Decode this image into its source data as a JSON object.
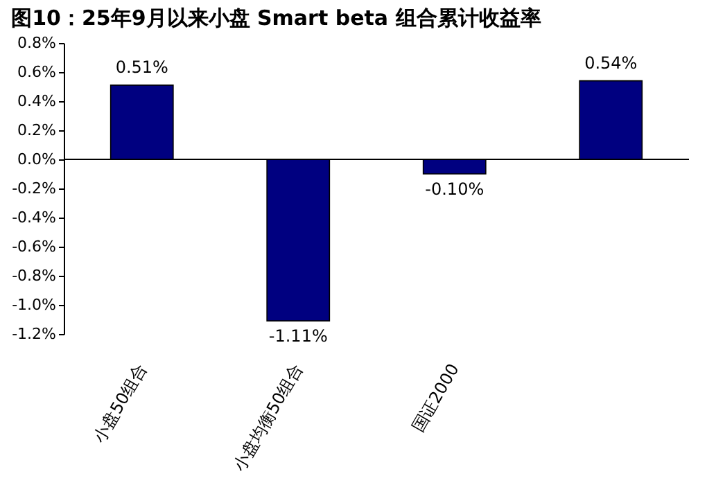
{
  "chart_data": {
    "type": "bar",
    "title": "图10：25年9月以来小盘 Smart beta 组合累计收益率",
    "categories": [
      "小盘50组合",
      "小盘均衡50组合",
      "国证2000",
      null
    ],
    "values": [
      0.51,
      -1.11,
      -0.1,
      0.54
    ],
    "value_labels": [
      "0.51%",
      "-1.11%",
      "-0.10%",
      "0.54%"
    ],
    "color": "#000080",
    "ylim": [
      -1.2,
      0.8
    ],
    "yticks": [
      {
        "value": 0.8,
        "label": "0.8%"
      },
      {
        "value": 0.6,
        "label": "0.6%"
      },
      {
        "value": 0.4,
        "label": "0.4%"
      },
      {
        "value": 0.2,
        "label": "0.2%"
      },
      {
        "value": 0.0,
        "label": "0.0%"
      },
      {
        "value": -0.2,
        "label": "-0.2%"
      },
      {
        "value": -0.4,
        "label": "-0.4%"
      },
      {
        "value": -0.6,
        "label": "-0.6%"
      },
      {
        "value": -0.8,
        "label": "-0.8%"
      },
      {
        "value": -1.0,
        "label": "-1.0%"
      },
      {
        "value": -1.2,
        "label": "-1.2%"
      }
    ],
    "ref_lines": [
      {
        "axis": "y",
        "value": 0,
        "color": "#000000"
      }
    ],
    "grid": false
  }
}
